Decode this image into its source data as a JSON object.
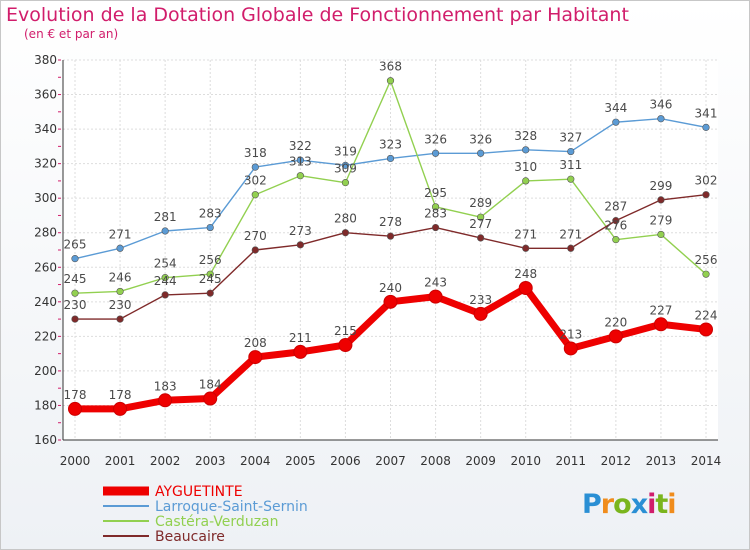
{
  "header": {
    "title": "Evolution de la Dotation Globale de Fonctionnement par Habitant",
    "subtitle": "(en € et par an)"
  },
  "logo": {
    "text": "Proxiti",
    "colors": [
      "#2a8fd4",
      "#f08c1c",
      "#7ab51d",
      "#2a8fd4",
      "#d11d6b",
      "#7ab51d",
      "#f08c1c"
    ]
  },
  "chart_data": {
    "type": "line",
    "title": "Evolution de la Dotation Globale de Fonctionnement par Habitant",
    "subtitle": "(en € et par an)",
    "xlabel": "",
    "ylabel": "",
    "ylim": [
      160,
      380
    ],
    "yticks": [
      160,
      180,
      200,
      220,
      240,
      260,
      280,
      300,
      320,
      340,
      360,
      380
    ],
    "grid": true,
    "legend_position": "bottom-left",
    "categories": [
      "2000",
      "2001",
      "2002",
      "2003",
      "2004",
      "2005",
      "2006",
      "2007",
      "2008",
      "2009",
      "2010",
      "2011",
      "2012",
      "2013",
      "2014"
    ],
    "series": [
      {
        "name": "AYGUETINTE",
        "color": "#ee0000",
        "emphasis": true,
        "values": [
          178,
          178,
          183,
          184,
          208,
          211,
          215,
          240,
          243,
          233,
          248,
          213,
          220,
          227,
          224
        ]
      },
      {
        "name": "Larroque-Saint-Sernin",
        "color": "#5b9bd5",
        "emphasis": false,
        "values": [
          265,
          271,
          281,
          283,
          318,
          322,
          319,
          323,
          326,
          326,
          328,
          327,
          344,
          346,
          341
        ]
      },
      {
        "name": "Castéra-Verduzan",
        "color": "#92d050",
        "emphasis": false,
        "values": [
          245,
          246,
          254,
          256,
          302,
          313,
          309,
          368,
          295,
          289,
          310,
          311,
          276,
          279,
          256
        ]
      },
      {
        "name": "Beaucaire",
        "color": "#7f2a2a",
        "emphasis": false,
        "values": [
          230,
          230,
          244,
          245,
          270,
          273,
          280,
          278,
          283,
          277,
          271,
          271,
          287,
          299,
          302
        ]
      }
    ]
  }
}
